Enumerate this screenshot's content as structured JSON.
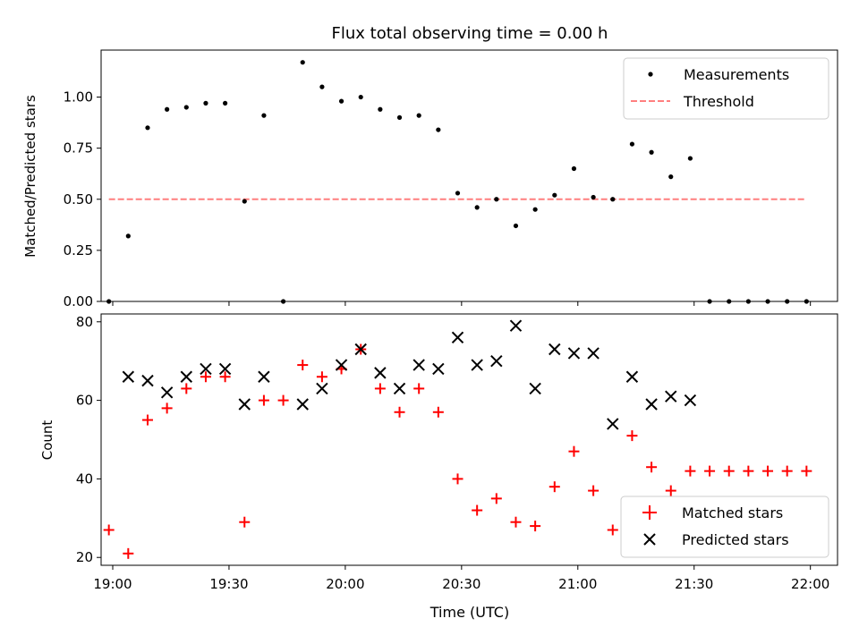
{
  "chart_data": [
    {
      "type": "scatter",
      "title": "Flux total observing time = 0.00 h",
      "xlabel": "",
      "ylabel": "Matched/Predicted stars",
      "x_ticks": [
        "19:00",
        "19:30",
        "20:00",
        "20:30",
        "21:00",
        "21:30",
        "22:00"
      ],
      "y_ticks": [
        "0.00",
        "0.25",
        "0.50",
        "0.75",
        "1.00"
      ],
      "xlim": [
        "18:57",
        "22:07"
      ],
      "ylim": [
        0,
        1.23
      ],
      "legend_position": "upper right",
      "series": [
        {
          "name": "Measurements",
          "style": "dot",
          "color": "#000000",
          "x": [
            "18:59",
            "19:04",
            "19:09",
            "19:14",
            "19:19",
            "19:24",
            "19:29",
            "19:34",
            "19:39",
            "19:44",
            "19:49",
            "19:54",
            "19:59",
            "20:04",
            "20:09",
            "20:14",
            "20:19",
            "20:24",
            "20:29",
            "20:34",
            "20:39",
            "20:44",
            "20:49",
            "20:54",
            "20:59",
            "21:04",
            "21:09",
            "21:14",
            "21:19",
            "21:24",
            "21:29",
            "21:34",
            "21:39",
            "21:44",
            "21:49",
            "21:54",
            "21:59"
          ],
          "y": [
            0.0,
            0.32,
            0.85,
            0.94,
            0.95,
            0.97,
            0.97,
            0.49,
            0.91,
            0.0,
            1.17,
            1.05,
            0.98,
            1.0,
            0.94,
            0.9,
            0.91,
            0.84,
            0.53,
            0.46,
            0.5,
            0.37,
            0.45,
            0.52,
            0.65,
            0.51,
            0.5,
            0.77,
            0.73,
            0.61,
            0.7,
            0.0,
            0.0,
            0.0,
            0.0,
            0.0,
            0.0
          ]
        },
        {
          "name": "Threshold",
          "style": "dashed-line",
          "color": "#ff7f7f",
          "x": [
            "18:59",
            "21:59"
          ],
          "y": [
            0.5,
            0.5
          ]
        }
      ]
    },
    {
      "type": "scatter",
      "title": "",
      "xlabel": "Time (UTC)",
      "ylabel": "Count",
      "x_ticks": [
        "19:00",
        "19:30",
        "20:00",
        "20:30",
        "21:00",
        "21:30",
        "22:00"
      ],
      "y_ticks": [
        "20",
        "40",
        "60",
        "80"
      ],
      "xlim": [
        "18:57",
        "22:07"
      ],
      "ylim": [
        18,
        82
      ],
      "legend_position": "lower right",
      "series": [
        {
          "name": "Matched stars",
          "marker": "plus",
          "color": "#ff0000",
          "x": [
            "18:59",
            "19:04",
            "19:09",
            "19:14",
            "19:19",
            "19:24",
            "19:29",
            "19:34",
            "19:39",
            "19:44",
            "19:49",
            "19:54",
            "19:59",
            "20:04",
            "20:09",
            "20:14",
            "20:19",
            "20:24",
            "20:29",
            "20:34",
            "20:39",
            "20:44",
            "20:49",
            "20:54",
            "20:59",
            "21:04",
            "21:09",
            "21:14",
            "21:19",
            "21:24",
            "21:29",
            "21:34",
            "21:39",
            "21:44",
            "21:49",
            "21:54",
            "21:59"
          ],
          "y": [
            27,
            21,
            55,
            58,
            63,
            66,
            66,
            29,
            60,
            60,
            69,
            66,
            68,
            73,
            63,
            57,
            63,
            57,
            40,
            32,
            35,
            29,
            28,
            38,
            47,
            37,
            27,
            51,
            43,
            37,
            42,
            42,
            42,
            42,
            42,
            42,
            42
          ]
        },
        {
          "name": "Predicted stars",
          "marker": "x",
          "color": "#000000",
          "x": [
            "19:04",
            "19:09",
            "19:14",
            "19:19",
            "19:24",
            "19:29",
            "19:34",
            "19:39",
            "19:49",
            "19:54",
            "19:59",
            "20:04",
            "20:09",
            "20:14",
            "20:19",
            "20:24",
            "20:29",
            "20:34",
            "20:39",
            "20:44",
            "20:49",
            "20:54",
            "20:59",
            "21:04",
            "21:09",
            "21:14",
            "21:19",
            "21:24",
            "21:29"
          ],
          "y": [
            66,
            65,
            62,
            66,
            68,
            68,
            59,
            66,
            59,
            63,
            69,
            73,
            67,
            63,
            69,
            68,
            76,
            69,
            70,
            79,
            63,
            73,
            72,
            72,
            54,
            66,
            59,
            61,
            60
          ]
        }
      ]
    }
  ]
}
